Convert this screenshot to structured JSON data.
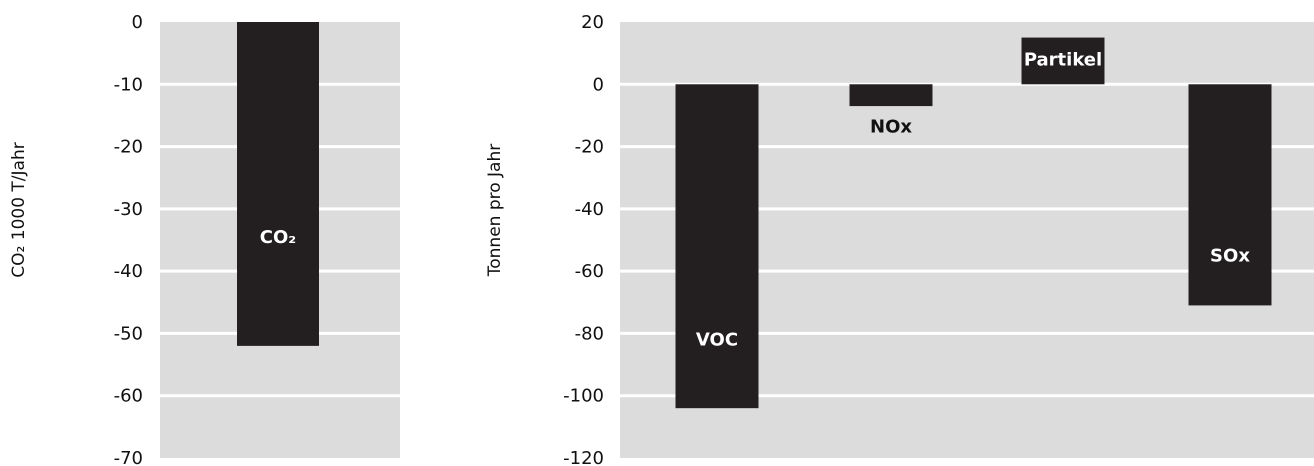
{
  "colors": {
    "plot_background": "#dcdcdc",
    "gridline": "#ffffff",
    "bar": "#231f20",
    "bar_label_inside": "#ffffff",
    "bar_label_outside": "#111111"
  },
  "chart_data": [
    {
      "type": "bar",
      "ylabel": "CO₂ 1000 T/Jahr",
      "ylim": [
        -70,
        0
      ],
      "yticks": [
        "0",
        "-10",
        "-20",
        "-30",
        "-40",
        "-50",
        "-60",
        "-70"
      ],
      "categories": [
        "CO₂"
      ],
      "values": [
        -52
      ],
      "bar_labels": [
        "CO₂"
      ],
      "grid": true,
      "legend": "none"
    },
    {
      "type": "bar",
      "ylabel": "Tonnen pro Jahr",
      "ylim": [
        -120,
        20
      ],
      "yticks": [
        "20",
        "0",
        "-20",
        "-40",
        "-60",
        "-80",
        "-100",
        "-120"
      ],
      "categories": [
        "VOC",
        "NOx",
        "Partikel",
        "SOx"
      ],
      "values": [
        -104,
        -7,
        15,
        -71
      ],
      "bar_labels": [
        "VOC",
        "NOx",
        "Partikel",
        "SOx"
      ],
      "grid": true,
      "legend": "none"
    }
  ]
}
